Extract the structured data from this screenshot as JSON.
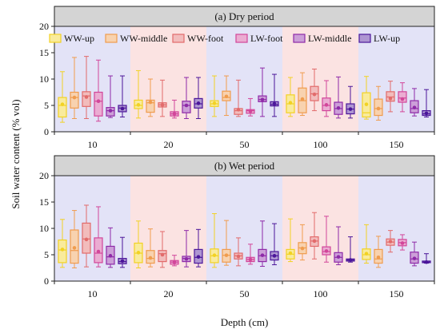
{
  "chart_data": {
    "type": "boxplot",
    "ylabel": "Soil water content (% vol)",
    "xlabel": "Depth (cm)",
    "categories": [
      "10",
      "20",
      "50",
      "100",
      "150"
    ],
    "ylim": [
      0,
      20
    ],
    "yticks": [
      "0",
      "5",
      "10",
      "15",
      "20"
    ],
    "legend_position": "top",
    "series": [
      {
        "name": "WW-up",
        "color": "#F2D224"
      },
      {
        "name": "WW-middle",
        "color": "#F09C4E"
      },
      {
        "name": "WW-foot",
        "color": "#E26B6B"
      },
      {
        "name": "LW-foot",
        "color": "#D2469A"
      },
      {
        "name": "LW-middle",
        "color": "#8E2AA8"
      },
      {
        "name": "LW-up",
        "color": "#4B169A"
      }
    ],
    "band_colors": [
      "#E3E3F7",
      "#FBE3E2"
    ],
    "panels": [
      {
        "title": "(a) Dry period",
        "boxes": [
          [
            {
              "min": 1.8,
              "q1": 2.8,
              "median": 5.0,
              "q3": 6.5,
              "max": 11.4,
              "mean": 5.2
            },
            {
              "min": 2.5,
              "q1": 4.5,
              "median": 6.5,
              "q3": 7.5,
              "max": 14.1,
              "mean": 6.5
            },
            {
              "min": 2.5,
              "q1": 4.8,
              "median": 6.8,
              "q3": 7.6,
              "max": 14.3,
              "mean": 6.6
            },
            {
              "min": 2.0,
              "q1": 3.0,
              "median": 5.8,
              "q3": 7.5,
              "max": 13.6,
              "mean": 5.8
            },
            {
              "min": 2.7,
              "q1": 3.0,
              "median": 4.0,
              "q3": 4.6,
              "max": 10.6,
              "mean": 4.0
            },
            {
              "min": 2.8,
              "q1": 3.8,
              "median": 4.5,
              "q3": 5.0,
              "max": 10.6,
              "mean": 4.4
            }
          ],
          [
            {
              "min": 2.6,
              "q1": 4.4,
              "median": 5.0,
              "q3": 6.0,
              "max": 11.6,
              "mean": 5.1
            },
            {
              "min": 2.9,
              "q1": 3.7,
              "median": 5.5,
              "q3": 6.0,
              "max": 10.0,
              "mean": 5.6
            },
            {
              "min": 2.9,
              "q1": 4.7,
              "median": 5.1,
              "q3": 5.5,
              "max": 9.8,
              "mean": 5.1
            },
            {
              "min": 2.6,
              "q1": 3.0,
              "median": 3.4,
              "q3": 3.8,
              "max": 6.0,
              "mean": 3.4
            },
            {
              "min": 2.5,
              "q1": 3.6,
              "median": 5.0,
              "q3": 5.8,
              "max": 10.3,
              "mean": 5.0
            },
            {
              "min": 2.5,
              "q1": 4.5,
              "median": 5.3,
              "q3": 6.3,
              "max": 10.3,
              "mean": 5.4
            }
          ],
          [
            {
              "min": 2.9,
              "q1": 4.8,
              "median": 5.3,
              "q3": 5.9,
              "max": 10.6,
              "mean": 5.4
            },
            {
              "min": 3.1,
              "q1": 5.9,
              "median": 6.5,
              "q3": 7.7,
              "max": 10.6,
              "mean": 6.7
            },
            {
              "min": 2.9,
              "q1": 3.3,
              "median": 4.0,
              "q3": 4.4,
              "max": 9.8,
              "mean": 4.2
            },
            {
              "min": 3.0,
              "q1": 3.5,
              "median": 4.0,
              "q3": 4.2,
              "max": 6.3,
              "mean": 3.9
            },
            {
              "min": 2.9,
              "q1": 5.7,
              "median": 6.1,
              "q3": 6.8,
              "max": 12.1,
              "mean": 6.1
            },
            {
              "min": 2.9,
              "q1": 4.9,
              "median": 5.2,
              "q3": 5.7,
              "max": 10.9,
              "mean": 5.3
            }
          ],
          [
            {
              "min": 2.9,
              "q1": 3.6,
              "median": 5.3,
              "q3": 7.0,
              "max": 10.3,
              "mean": 5.5
            },
            {
              "min": 3.1,
              "q1": 3.6,
              "median": 5.9,
              "q3": 8.3,
              "max": 11.2,
              "mean": 6.2
            },
            {
              "min": 4.0,
              "q1": 5.9,
              "median": 7.2,
              "q3": 8.6,
              "max": 11.9,
              "mean": 7.1
            },
            {
              "min": 2.9,
              "q1": 4.0,
              "median": 5.0,
              "q3": 6.4,
              "max": 9.7,
              "mean": 5.1
            },
            {
              "min": 2.6,
              "q1": 3.3,
              "median": 4.4,
              "q3": 5.6,
              "max": 10.4,
              "mean": 4.5
            },
            {
              "min": 2.6,
              "q1": 3.4,
              "median": 4.3,
              "q3": 5.3,
              "max": 8.6,
              "mean": 4.3
            }
          ],
          [
            {
              "min": 2.4,
              "q1": 2.8,
              "median": 3.6,
              "q3": 7.4,
              "max": 10.5,
              "mean": 5.2
            },
            {
              "min": 2.2,
              "q1": 3.1,
              "median": 4.4,
              "q3": 6.2,
              "max": 8.6,
              "mean": 4.4
            },
            {
              "min": 3.8,
              "q1": 5.8,
              "median": 6.6,
              "q3": 7.6,
              "max": 9.6,
              "mean": 6.3
            },
            {
              "min": 3.8,
              "q1": 5.6,
              "median": 6.4,
              "q3": 7.6,
              "max": 9.3,
              "mean": 6.2
            },
            {
              "min": 3.0,
              "q1": 3.6,
              "median": 4.4,
              "q3": 5.9,
              "max": 8.2,
              "mean": 4.6
            },
            {
              "min": 2.8,
              "q1": 3.1,
              "median": 3.4,
              "q3": 4.0,
              "max": 8.0,
              "mean": 3.5
            }
          ]
        ]
      },
      {
        "title": "(b) Wet period",
        "boxes": [
          [
            {
              "min": 2.6,
              "q1": 3.5,
              "median": 5.9,
              "q3": 7.8,
              "max": 11.7,
              "mean": 6.0
            },
            {
              "min": 2.5,
              "q1": 3.4,
              "median": 5.8,
              "q3": 9.7,
              "max": 13.4,
              "mean": 6.3
            },
            {
              "min": 2.7,
              "q1": 5.3,
              "median": 8.0,
              "q3": 11.0,
              "max": 14.4,
              "mean": 7.9
            },
            {
              "min": 2.7,
              "q1": 3.5,
              "median": 5.3,
              "q3": 8.2,
              "max": 14.1,
              "mean": 5.6
            },
            {
              "min": 2.6,
              "q1": 3.2,
              "median": 4.6,
              "q3": 6.6,
              "max": 10.1,
              "mean": 4.8
            },
            {
              "min": 2.6,
              "q1": 3.3,
              "median": 3.7,
              "q3": 4.3,
              "max": 8.3,
              "mean": 3.8
            }
          ],
          [
            {
              "min": 2.5,
              "q1": 3.5,
              "median": 5.3,
              "q3": 7.2,
              "max": 11.4,
              "mean": 5.4
            },
            {
              "min": 2.7,
              "q1": 3.4,
              "median": 4.3,
              "q3": 5.8,
              "max": 9.9,
              "mean": 4.4
            },
            {
              "min": 2.6,
              "q1": 3.7,
              "median": 5.2,
              "q3": 5.8,
              "max": 9.4,
              "mean": 5.0
            },
            {
              "min": 2.9,
              "q1": 3.2,
              "median": 3.6,
              "q3": 3.9,
              "max": 4.9,
              "mean": 3.6
            },
            {
              "min": 2.7,
              "q1": 3.7,
              "median": 4.3,
              "q3": 4.7,
              "max": 9.6,
              "mean": 4.2
            },
            {
              "min": 2.7,
              "q1": 3.4,
              "median": 4.5,
              "q3": 6.0,
              "max": 9.8,
              "mean": 4.6
            }
          ],
          [
            {
              "min": 2.6,
              "q1": 3.5,
              "median": 4.8,
              "q3": 6.1,
              "max": 12.8,
              "mean": 4.9
            },
            {
              "min": 3.0,
              "q1": 3.6,
              "median": 4.9,
              "q3": 6.0,
              "max": 11.5,
              "mean": 4.9
            },
            {
              "min": 2.9,
              "q1": 4.2,
              "median": 4.8,
              "q3": 5.3,
              "max": 8.2,
              "mean": 4.7
            },
            {
              "min": 3.2,
              "q1": 3.7,
              "median": 4.1,
              "q3": 4.5,
              "max": 7.0,
              "mean": 4.1
            },
            {
              "min": 2.8,
              "q1": 3.7,
              "median": 4.8,
              "q3": 6.0,
              "max": 11.4,
              "mean": 4.9
            },
            {
              "min": 3.1,
              "q1": 4.0,
              "median": 4.8,
              "q3": 5.6,
              "max": 10.9,
              "mean": 4.8
            }
          ],
          [
            {
              "min": 3.7,
              "q1": 4.2,
              "median": 5.1,
              "q3": 6.0,
              "max": 11.8,
              "mean": 5.3
            },
            {
              "min": 4.0,
              "q1": 5.2,
              "median": 6.3,
              "q3": 7.3,
              "max": 10.7,
              "mean": 6.2
            },
            {
              "min": 4.2,
              "q1": 6.6,
              "median": 7.6,
              "q3": 8.4,
              "max": 13.0,
              "mean": 7.6
            },
            {
              "min": 3.6,
              "q1": 5.0,
              "median": 5.6,
              "q3": 6.5,
              "max": 12.3,
              "mean": 5.7
            },
            {
              "min": 3.1,
              "q1": 3.6,
              "median": 4.5,
              "q3": 5.4,
              "max": 10.3,
              "mean": 4.6
            },
            {
              "min": 3.6,
              "q1": 3.8,
              "median": 4.0,
              "q3": 4.2,
              "max": 8.4,
              "mean": 4.0
            }
          ],
          [
            {
              "min": 3.4,
              "q1": 4.1,
              "median": 5.0,
              "q3": 6.1,
              "max": 10.7,
              "mean": 5.2
            },
            {
              "min": 2.6,
              "q1": 3.4,
              "median": 4.2,
              "q3": 6.0,
              "max": 8.5,
              "mean": 4.5
            },
            {
              "min": 5.5,
              "q1": 6.8,
              "median": 7.4,
              "q3": 8.0,
              "max": 9.6,
              "mean": 7.5
            },
            {
              "min": 5.9,
              "q1": 6.7,
              "median": 7.3,
              "q3": 7.9,
              "max": 8.8,
              "mean": 7.2
            },
            {
              "min": 2.9,
              "q1": 3.4,
              "median": 4.2,
              "q3": 5.5,
              "max": 7.4,
              "mean": 4.3
            },
            {
              "min": 3.4,
              "q1": 3.5,
              "median": 3.6,
              "q3": 3.8,
              "max": 5.2,
              "mean": 3.6
            }
          ]
        ]
      }
    ]
  }
}
